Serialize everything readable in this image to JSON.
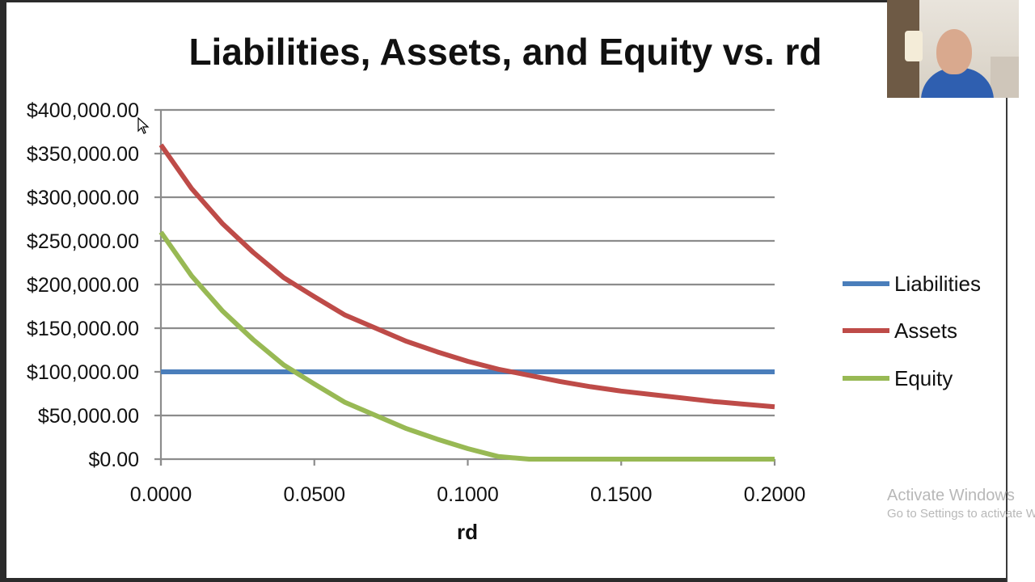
{
  "chart_data": {
    "type": "line",
    "title": "Liabilities, Assets, and Equity vs. rd",
    "xlabel": "rd",
    "ylabel": "",
    "xlim": [
      0,
      0.2
    ],
    "ylim": [
      0,
      400000
    ],
    "x_ticks": [
      0,
      0.05,
      0.1,
      0.15,
      0.2
    ],
    "x_tick_labels": [
      "0.0000",
      "0.0500",
      "0.1000",
      "0.1500",
      "0.2000"
    ],
    "y_ticks": [
      0,
      50000,
      100000,
      150000,
      200000,
      250000,
      300000,
      350000,
      400000
    ],
    "y_tick_labels": [
      "$0.00",
      "$50,000.00",
      "$100,000.00",
      "$150,000.00",
      "$200,000.00",
      "$250,000.00",
      "$300,000.00",
      "$350,000.00",
      "$400,000.00"
    ],
    "grid": true,
    "legend_position": "right",
    "x": [
      0,
      0.01,
      0.02,
      0.03,
      0.04,
      0.05,
      0.06,
      0.07,
      0.08,
      0.09,
      0.1,
      0.11,
      0.12,
      0.13,
      0.14,
      0.15,
      0.16,
      0.17,
      0.18,
      0.19,
      0.2
    ],
    "series": [
      {
        "name": "Liabilities",
        "color": "#4a7ebb",
        "values": [
          100000,
          100000,
          100000,
          100000,
          100000,
          100000,
          100000,
          100000,
          100000,
          100000,
          100000,
          100000,
          100000,
          100000,
          100000,
          100000,
          100000,
          100000,
          100000,
          100000,
          100000
        ]
      },
      {
        "name": "Assets",
        "color": "#be4b48",
        "values": [
          360000,
          310000,
          270000,
          237000,
          208000,
          186000,
          165000,
          150000,
          135000,
          123000,
          112000,
          103000,
          96000,
          89000,
          83000,
          78000,
          74000,
          70000,
          66000,
          63000,
          60000
        ]
      },
      {
        "name": "Equity",
        "color": "#98b954",
        "values": [
          260000,
          210000,
          170000,
          137000,
          108000,
          86000,
          65000,
          50000,
          35000,
          23000,
          12000,
          3000,
          0,
          0,
          0,
          0,
          0,
          0,
          0,
          0,
          0
        ]
      }
    ]
  },
  "overlay": {
    "watermark_title": "Activate Windows",
    "watermark_subtitle": "Go to Settings to activate Windows."
  }
}
